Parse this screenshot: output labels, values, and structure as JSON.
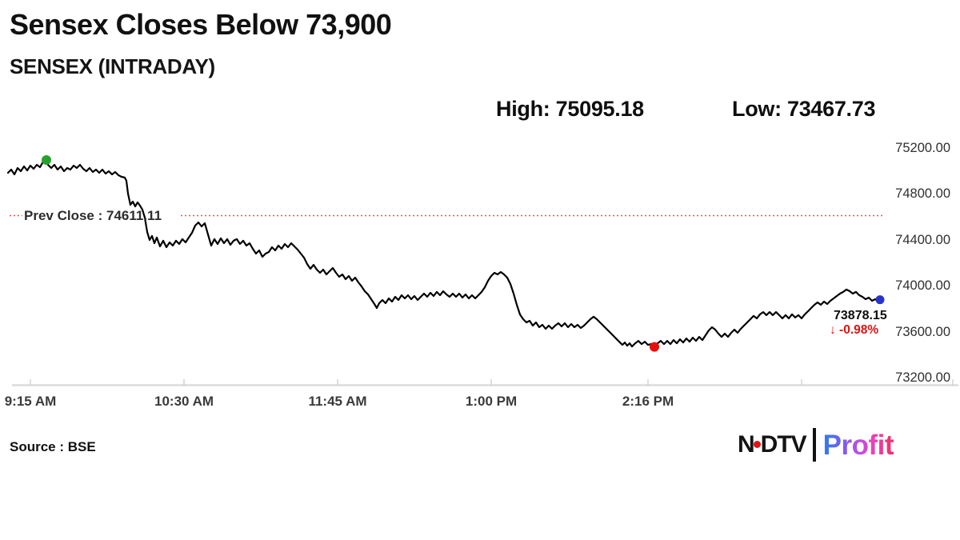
{
  "header": {
    "title": "Sensex Closes Below 73,900",
    "subtitle": "SENSEX (INTRADAY)",
    "high_text": "High: 75095.18",
    "low_text": "Low: 73467.73"
  },
  "annotations": {
    "prev_close": "Prev Close : 74611.11",
    "last_price": "73878.15",
    "change": "↓ -0.98%"
  },
  "footer": {
    "source": "Source : BSE",
    "logo_ndtv_left": "N",
    "logo_ndtv_right": "DTV",
    "logo_profit": "Profit"
  },
  "colors": {
    "line": "#000000",
    "prev_close_line": "#df5a50",
    "axis_line": "#dcdcdc",
    "tick": "#c9c9c9",
    "open_marker": "#27a22e",
    "low_marker": "#e8100c",
    "close_marker": "#2b32c8",
    "change_red": "#e01111"
  },
  "chart_data": {
    "type": "line",
    "title": "SENSEX (INTRADAY)",
    "xlabel": "",
    "ylabel": "",
    "grid": false,
    "legend": "none",
    "x_axis": {
      "tick_labels": [
        "9:15 AM",
        "10:30 AM",
        "11:45 AM",
        "1:00 PM",
        "2:16 PM"
      ],
      "tick_pos": [
        28,
        220,
        412,
        604,
        800
      ],
      "extra_tick_pos": [
        992,
        1181
      ],
      "xlim": [
        0,
        1090
      ]
    },
    "y_axis": {
      "tick_labels": [
        "75200.00",
        "74800.00",
        "74400.00",
        "74000.00",
        "73600.00",
        "73200.00"
      ],
      "tick_values": [
        75200,
        74800,
        74400,
        74000,
        73600,
        73200
      ],
      "ylim": [
        73200,
        75200
      ]
    },
    "prev_close_value": 74611.11,
    "high": 75095.18,
    "low": 73467.73,
    "last": 73878.15,
    "change_pct": -0.98,
    "markers": {
      "open_high": {
        "x": 48,
        "value": 75095.18
      },
      "low": {
        "x": 808,
        "value": 73467.73
      },
      "close": {
        "x": 1090,
        "value": 73878.15
      }
    },
    "series": [
      [
        0,
        74984
      ],
      [
        4,
        75012
      ],
      [
        8,
        74970
      ],
      [
        12,
        75026
      ],
      [
        16,
        74998
      ],
      [
        20,
        75040
      ],
      [
        24,
        75005
      ],
      [
        28,
        75047
      ],
      [
        32,
        75019
      ],
      [
        36,
        75054
      ],
      [
        40,
        75033
      ],
      [
        44,
        75082
      ],
      [
        48,
        75095
      ],
      [
        50,
        75054
      ],
      [
        54,
        75026
      ],
      [
        58,
        75054
      ],
      [
        62,
        75012
      ],
      [
        66,
        75040
      ],
      [
        70,
        74998
      ],
      [
        74,
        75026
      ],
      [
        78,
        75012
      ],
      [
        82,
        75047
      ],
      [
        86,
        75026
      ],
      [
        90,
        75054
      ],
      [
        94,
        75019
      ],
      [
        98,
        74998
      ],
      [
        102,
        75026
      ],
      [
        106,
        74991
      ],
      [
        110,
        75012
      ],
      [
        114,
        74984
      ],
      [
        118,
        75012
      ],
      [
        122,
        74977
      ],
      [
        126,
        74998
      ],
      [
        130,
        74970
      ],
      [
        134,
        74991
      ],
      [
        138,
        74963
      ],
      [
        142,
        74949
      ],
      [
        146,
        74942
      ],
      [
        148,
        74914
      ],
      [
        150,
        74803
      ],
      [
        153,
        74705
      ],
      [
        156,
        74733
      ],
      [
        159,
        74691
      ],
      [
        162,
        74726
      ],
      [
        165,
        74698
      ],
      [
        168,
        74663
      ],
      [
        171,
        74594
      ],
      [
        174,
        74468
      ],
      [
        177,
        74399
      ],
      [
        180,
        74434
      ],
      [
        183,
        74371
      ],
      [
        186,
        74420
      ],
      [
        190,
        74343
      ],
      [
        194,
        74392
      ],
      [
        198,
        74336
      ],
      [
        202,
        74378
      ],
      [
        206,
        74350
      ],
      [
        210,
        74392
      ],
      [
        214,
        74364
      ],
      [
        218,
        74406
      ],
      [
        222,
        74378
      ],
      [
        226,
        74420
      ],
      [
        230,
        74461
      ],
      [
        234,
        74524
      ],
      [
        238,
        74552
      ],
      [
        242,
        74517
      ],
      [
        246,
        74545
      ],
      [
        250,
        74447
      ],
      [
        254,
        74350
      ],
      [
        258,
        74406
      ],
      [
        262,
        74364
      ],
      [
        266,
        74413
      ],
      [
        270,
        74371
      ],
      [
        274,
        74406
      ],
      [
        278,
        74357
      ],
      [
        282,
        74392
      ],
      [
        286,
        74406
      ],
      [
        290,
        74364
      ],
      [
        294,
        74392
      ],
      [
        298,
        74350
      ],
      [
        302,
        74371
      ],
      [
        306,
        74322
      ],
      [
        310,
        74280
      ],
      [
        314,
        74308
      ],
      [
        318,
        74252
      ],
      [
        322,
        74280
      ],
      [
        326,
        74294
      ],
      [
        330,
        74336
      ],
      [
        334,
        74308
      ],
      [
        338,
        74350
      ],
      [
        342,
        74322
      ],
      [
        346,
        74364
      ],
      [
        350,
        74336
      ],
      [
        354,
        74371
      ],
      [
        358,
        74343
      ],
      [
        362,
        74315
      ],
      [
        366,
        74280
      ],
      [
        370,
        74245
      ],
      [
        374,
        74189
      ],
      [
        378,
        74148
      ],
      [
        382,
        74182
      ],
      [
        386,
        74141
      ],
      [
        390,
        74113
      ],
      [
        394,
        74141
      ],
      [
        398,
        74099
      ],
      [
        402,
        74127
      ],
      [
        406,
        74155
      ],
      [
        410,
        74113
      ],
      [
        414,
        74078
      ],
      [
        418,
        74099
      ],
      [
        422,
        74057
      ],
      [
        426,
        74085
      ],
      [
        430,
        74043
      ],
      [
        434,
        74071
      ],
      [
        438,
        74029
      ],
      [
        442,
        73994
      ],
      [
        446,
        73952
      ],
      [
        450,
        73925
      ],
      [
        454,
        73883
      ],
      [
        458,
        73841
      ],
      [
        461,
        73806
      ],
      [
        464,
        73848
      ],
      [
        468,
        73876
      ],
      [
        472,
        73848
      ],
      [
        476,
        73890
      ],
      [
        480,
        73862
      ],
      [
        484,
        73904
      ],
      [
        488,
        73876
      ],
      [
        492,
        73918
      ],
      [
        496,
        73890
      ],
      [
        500,
        73918
      ],
      [
        504,
        73883
      ],
      [
        508,
        73911
      ],
      [
        512,
        73876
      ],
      [
        516,
        73904
      ],
      [
        520,
        73932
      ],
      [
        524,
        73904
      ],
      [
        528,
        73939
      ],
      [
        532,
        73911
      ],
      [
        536,
        73946
      ],
      [
        540,
        73918
      ],
      [
        544,
        73952
      ],
      [
        548,
        73925
      ],
      [
        552,
        73904
      ],
      [
        556,
        73932
      ],
      [
        560,
        73904
      ],
      [
        564,
        73932
      ],
      [
        568,
        73897
      ],
      [
        572,
        73925
      ],
      [
        576,
        73890
      ],
      [
        580,
        73918
      ],
      [
        584,
        73890
      ],
      [
        588,
        73918
      ],
      [
        592,
        73946
      ],
      [
        596,
        73987
      ],
      [
        600,
        74043
      ],
      [
        604,
        74085
      ],
      [
        608,
        74113
      ],
      [
        612,
        74099
      ],
      [
        616,
        74120
      ],
      [
        620,
        74099
      ],
      [
        624,
        74071
      ],
      [
        628,
        74015
      ],
      [
        632,
        73932
      ],
      [
        636,
        73834
      ],
      [
        640,
        73750
      ],
      [
        644,
        73709
      ],
      [
        648,
        73681
      ],
      [
        652,
        73695
      ],
      [
        656,
        73653
      ],
      [
        660,
        73681
      ],
      [
        664,
        73639
      ],
      [
        668,
        73660
      ],
      [
        672,
        73625
      ],
      [
        676,
        73653
      ],
      [
        680,
        73625
      ],
      [
        684,
        73653
      ],
      [
        688,
        73674
      ],
      [
        692,
        73646
      ],
      [
        696,
        73674
      ],
      [
        700,
        73639
      ],
      [
        704,
        73667
      ],
      [
        708,
        73639
      ],
      [
        712,
        73660
      ],
      [
        716,
        73632
      ],
      [
        720,
        73653
      ],
      [
        724,
        73681
      ],
      [
        728,
        73709
      ],
      [
        732,
        73730
      ],
      [
        736,
        73709
      ],
      [
        740,
        73681
      ],
      [
        744,
        73653
      ],
      [
        748,
        73625
      ],
      [
        752,
        73597
      ],
      [
        756,
        73569
      ],
      [
        760,
        73541
      ],
      [
        764,
        73513
      ],
      [
        768,
        73485
      ],
      [
        771,
        73506
      ],
      [
        774,
        73478
      ],
      [
        777,
        73499
      ],
      [
        780,
        73471
      ],
      [
        784,
        73499
      ],
      [
        788,
        73520
      ],
      [
        792,
        73492
      ],
      [
        796,
        73513
      ],
      [
        800,
        73485
      ],
      [
        804,
        73492
      ],
      [
        808,
        73468
      ],
      [
        812,
        73499
      ],
      [
        816,
        73520
      ],
      [
        820,
        73492
      ],
      [
        824,
        73520
      ],
      [
        828,
        73492
      ],
      [
        832,
        73527
      ],
      [
        836,
        73499
      ],
      [
        840,
        73534
      ],
      [
        844,
        73506
      ],
      [
        848,
        73541
      ],
      [
        852,
        73513
      ],
      [
        856,
        73548
      ],
      [
        860,
        73520
      ],
      [
        864,
        73555
      ],
      [
        868,
        73527
      ],
      [
        872,
        73569
      ],
      [
        876,
        73611
      ],
      [
        880,
        73639
      ],
      [
        884,
        73618
      ],
      [
        888,
        73583
      ],
      [
        892,
        73555
      ],
      [
        896,
        73583
      ],
      [
        900,
        73555
      ],
      [
        904,
        73590
      ],
      [
        908,
        73618
      ],
      [
        912,
        73590
      ],
      [
        916,
        73625
      ],
      [
        920,
        73653
      ],
      [
        924,
        73681
      ],
      [
        928,
        73709
      ],
      [
        932,
        73737
      ],
      [
        936,
        73716
      ],
      [
        940,
        73751
      ],
      [
        944,
        73771
      ],
      [
        948,
        73744
      ],
      [
        952,
        73771
      ],
      [
        956,
        73744
      ],
      [
        960,
        73771
      ],
      [
        964,
        73744
      ],
      [
        968,
        73716
      ],
      [
        972,
        73744
      ],
      [
        976,
        73716
      ],
      [
        980,
        73751
      ],
      [
        984,
        73723
      ],
      [
        988,
        73744
      ],
      [
        992,
        73716
      ],
      [
        996,
        73751
      ],
      [
        1000,
        73778
      ],
      [
        1004,
        73806
      ],
      [
        1008,
        73834
      ],
      [
        1012,
        73855
      ],
      [
        1016,
        73834
      ],
      [
        1020,
        73862
      ],
      [
        1024,
        73841
      ],
      [
        1028,
        73869
      ],
      [
        1032,
        73890
      ],
      [
        1036,
        73911
      ],
      [
        1040,
        73932
      ],
      [
        1044,
        73946
      ],
      [
        1048,
        73967
      ],
      [
        1052,
        73953
      ],
      [
        1056,
        73932
      ],
      [
        1060,
        73946
      ],
      [
        1064,
        73918
      ],
      [
        1068,
        73904
      ],
      [
        1072,
        73883
      ],
      [
        1076,
        73897
      ],
      [
        1080,
        73869
      ],
      [
        1084,
        73883
      ],
      [
        1088,
        73862
      ],
      [
        1090,
        73878.15
      ]
    ]
  }
}
